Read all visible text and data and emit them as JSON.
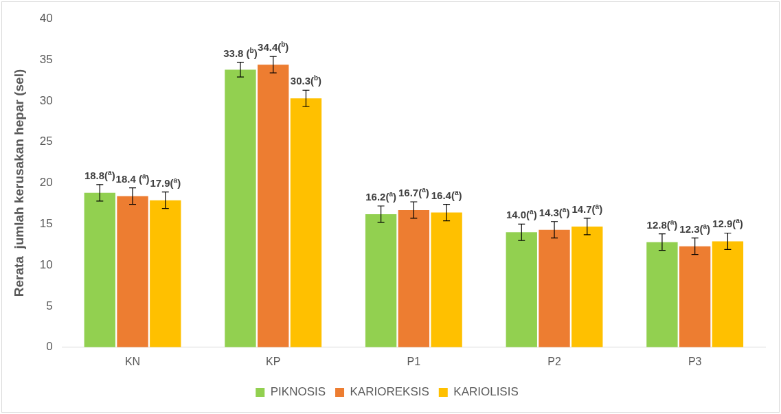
{
  "chart_data": {
    "type": "bar",
    "ylabel": "Rerata  jumlah kerusakan hepar (sel)",
    "categories": [
      "KN",
      "KP",
      "P1",
      "P2",
      "P3"
    ],
    "series": [
      {
        "name": "PIKNOSIS",
        "color": "#92d050",
        "values": [
          18.8,
          33.8,
          16.2,
          14.0,
          12.8
        ],
        "errors": [
          1.0,
          0.9,
          1.0,
          1.0,
          1.0
        ],
        "value_labels": [
          "18.8($^{a}$)",
          "33.8 ($^{b}$)",
          "16.2($^{a}$)",
          "14.0($^{a}$)",
          "12.8($^{a}$)"
        ]
      },
      {
        "name": "KARIOREKSIS",
        "color": "#ed7d31",
        "values": [
          18.4,
          34.4,
          16.7,
          14.3,
          12.3
        ],
        "errors": [
          1.0,
          1.0,
          1.0,
          1.0,
          1.0
        ],
        "value_labels": [
          "18.4 ($^{a}$)",
          "34.4($^{b}$)",
          "16.7($^{a}$)",
          "14.3($^{a}$)",
          "12.3($^{a}$)"
        ]
      },
      {
        "name": "KARIOLISIS",
        "color": "#ffc000",
        "values": [
          17.9,
          30.3,
          16.4,
          14.7,
          12.9
        ],
        "errors": [
          1.0,
          1.0,
          1.0,
          1.0,
          1.0
        ],
        "value_labels": [
          "17.9($^{a}$)",
          "30.3($^{b}$)",
          "16.4($^{a}$)",
          "14.7($^{a}$)",
          "12.9($^{a}$)"
        ]
      }
    ],
    "ylim": [
      0,
      40
    ],
    "yticks": [
      0,
      5,
      10,
      15,
      20,
      25,
      30,
      35,
      40
    ],
    "grid": false,
    "legend": "bottom"
  }
}
